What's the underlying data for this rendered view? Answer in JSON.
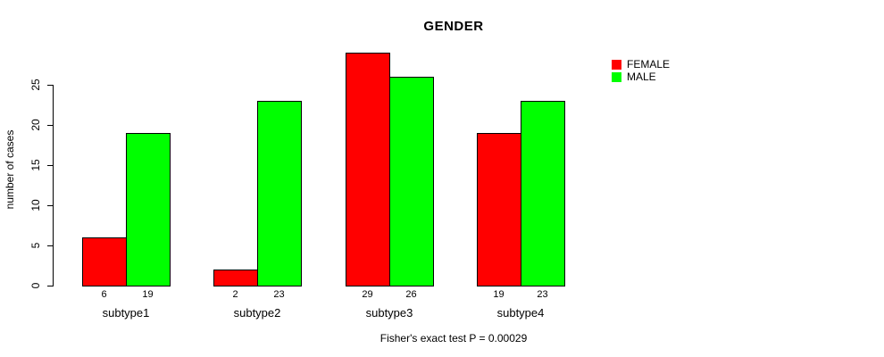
{
  "chart_data": {
    "type": "bar",
    "title": "GENDER",
    "xlabel": "",
    "ylabel": "number of cases",
    "categories": [
      "subtype1",
      "subtype2",
      "subtype3",
      "subtype4"
    ],
    "series": [
      {
        "name": "FEMALE",
        "color": "#ff0000",
        "values": [
          6,
          2,
          29,
          19
        ]
      },
      {
        "name": "MALE",
        "color": "#00ff00",
        "values": [
          19,
          23,
          26,
          23
        ]
      }
    ],
    "bar_value_labels": [
      [
        "6",
        "19"
      ],
      [
        "2",
        "23"
      ],
      [
        "29",
        "26"
      ],
      [
        "19",
        "23"
      ]
    ],
    "yticks": [
      0,
      5,
      10,
      15,
      20,
      25
    ],
    "ylim": [
      0,
      29
    ],
    "grid": false,
    "legend_position": "right",
    "annotation": "Fisher's exact test P = 0.00029"
  }
}
